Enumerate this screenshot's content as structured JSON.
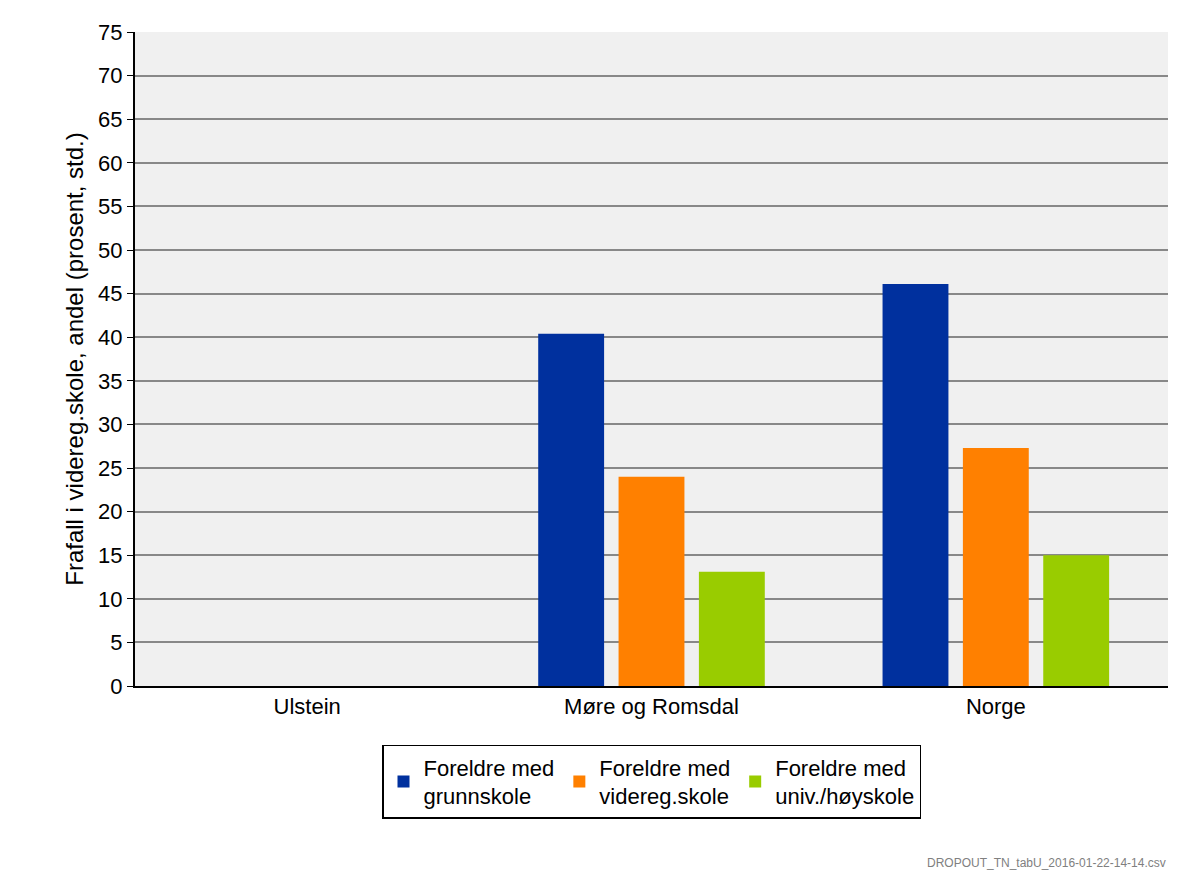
{
  "chart_data": {
    "type": "bar",
    "y_label": "Frafall i videreg.skole, andel (prosent, std.)",
    "categories": [
      "Ulstein",
      "Møre og Romsdal",
      "Norge"
    ],
    "series": [
      {
        "name": "Foreldre med grunnskole",
        "color": "#00309E",
        "values": [
          null,
          40.4,
          46.1
        ]
      },
      {
        "name": "Foreldre med videreg.skole",
        "color": "#FF8000",
        "values": [
          null,
          24.0,
          27.3
        ]
      },
      {
        "name": "Foreldre med univ./høyskole",
        "color": "#99CC00",
        "values": [
          null,
          13.1,
          15.0
        ]
      }
    ],
    "ylim": [
      0,
      75
    ],
    "yticks": [
      0,
      5,
      10,
      15,
      20,
      25,
      30,
      35,
      40,
      45,
      50,
      55,
      60,
      65,
      70,
      75
    ],
    "grid": true,
    "legend": "bottom",
    "annotations": [
      "DROPOUT_TN_tabU_2016-01-22-14-14.csv"
    ]
  }
}
